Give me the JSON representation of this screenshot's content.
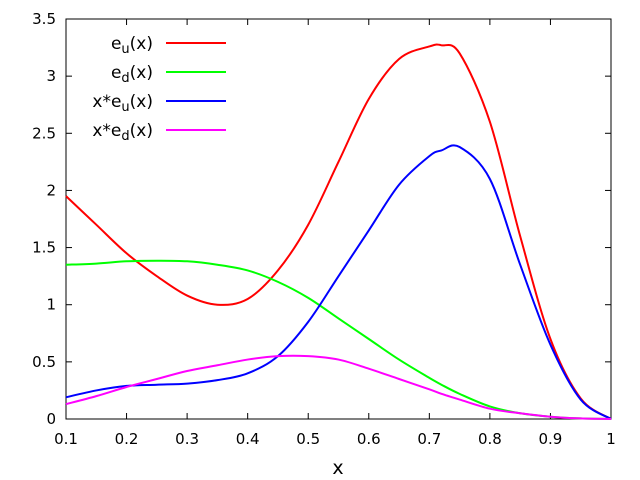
{
  "chart_data": {
    "type": "line",
    "xlabel": "x",
    "ylabel": "",
    "xlim": [
      0.1,
      1.0
    ],
    "ylim": [
      0,
      3.5
    ],
    "x_ticks": [
      "0.1",
      "0.2",
      "0.3",
      "0.4",
      "0.5",
      "0.6",
      "0.7",
      "0.8",
      "0.9",
      "1"
    ],
    "y_ticks": [
      "0",
      "0.5",
      "1",
      "1.5",
      "2",
      "2.5",
      "3",
      "3.5"
    ],
    "grid": false,
    "legend_position": "top-left",
    "x": [
      0.1,
      0.15,
      0.2,
      0.25,
      0.3,
      0.35,
      0.4,
      0.45,
      0.5,
      0.55,
      0.6,
      0.65,
      0.7,
      0.72,
      0.75,
      0.8,
      0.85,
      0.9,
      0.95,
      1.0
    ],
    "series": [
      {
        "name": "e_u(x)",
        "legend": {
          "base": "e",
          "sub": "u",
          "rest": "(x)"
        },
        "color": "#ff0000",
        "values": [
          1.95,
          1.7,
          1.45,
          1.25,
          1.08,
          1.0,
          1.05,
          1.3,
          1.7,
          2.25,
          2.8,
          3.15,
          3.26,
          3.27,
          3.2,
          2.6,
          1.6,
          0.7,
          0.18,
          0.0
        ]
      },
      {
        "name": "e_d(x)",
        "legend": {
          "base": "e",
          "sub": "d",
          "rest": "(x)"
        },
        "color": "#00ff00",
        "values": [
          1.35,
          1.36,
          1.38,
          1.385,
          1.38,
          1.35,
          1.3,
          1.2,
          1.06,
          0.88,
          0.7,
          0.52,
          0.36,
          0.3,
          0.22,
          0.11,
          0.05,
          0.02,
          0.005,
          0.0
        ]
      },
      {
        "name": "x*e_u(x)",
        "legend": {
          "base": "x*e",
          "sub": "u",
          "rest": "(x)"
        },
        "color": "#0000ff",
        "values": [
          0.19,
          0.25,
          0.29,
          0.3,
          0.31,
          0.34,
          0.4,
          0.55,
          0.85,
          1.25,
          1.65,
          2.05,
          2.3,
          2.35,
          2.38,
          2.1,
          1.35,
          0.65,
          0.17,
          0.0
        ]
      },
      {
        "name": "x*e_d(x)",
        "legend": {
          "base": "x*e",
          "sub": "d",
          "rest": "(x)"
        },
        "color": "#ff00ff",
        "values": [
          0.13,
          0.2,
          0.28,
          0.35,
          0.42,
          0.47,
          0.52,
          0.55,
          0.55,
          0.52,
          0.44,
          0.35,
          0.26,
          0.22,
          0.17,
          0.09,
          0.05,
          0.02,
          0.005,
          0.0
        ]
      }
    ]
  }
}
